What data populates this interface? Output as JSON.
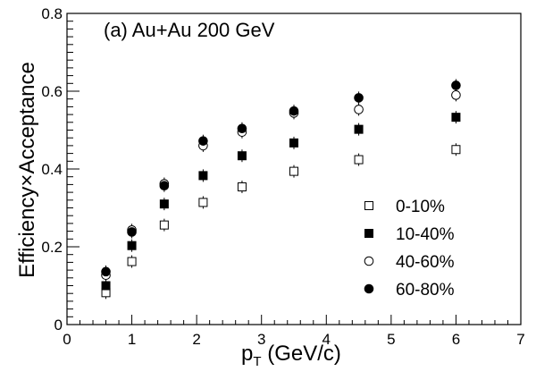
{
  "chart_data": {
    "type": "scatter",
    "title": "",
    "annotation": "(a) Au+Au 200 GeV",
    "xlabel": {
      "main": "p",
      "sub": "T",
      "rest": " (GeV/c)"
    },
    "ylabel": "Efficiency×Acceptance",
    "xlim": [
      0,
      7
    ],
    "ylim": [
      0,
      0.8
    ],
    "xticks": [
      0,
      1,
      2,
      3,
      4,
      5,
      6,
      7
    ],
    "xtick_labels": [
      "0",
      "1",
      "2",
      "3",
      "4",
      "5",
      "6",
      "7"
    ],
    "yticks": [
      0,
      0.2,
      0.4,
      0.6,
      0.8
    ],
    "ytick_labels": [
      "0",
      "0.2",
      "0.4",
      "0.6",
      "0.8"
    ],
    "grid": false,
    "legend_position": "bottom-right",
    "x": [
      0.6,
      1.0,
      1.5,
      2.1,
      2.7,
      3.5,
      4.5,
      6.0
    ],
    "series": [
      {
        "name": "0-10%",
        "marker": "open-square",
        "values": [
          0.082,
          0.162,
          0.256,
          0.314,
          0.354,
          0.394,
          0.424,
          0.45
        ]
      },
      {
        "name": "10-40%",
        "marker": "filled-square",
        "values": [
          0.1,
          0.203,
          0.31,
          0.383,
          0.434,
          0.467,
          0.502,
          0.533
        ]
      },
      {
        "name": "40-60%",
        "marker": "open-circle",
        "values": [
          0.127,
          0.243,
          0.362,
          0.46,
          0.495,
          0.544,
          0.553,
          0.59
        ]
      },
      {
        "name": "60-80%",
        "marker": "filled-circle",
        "values": [
          0.136,
          0.238,
          0.357,
          0.472,
          0.504,
          0.549,
          0.583,
          0.615
        ]
      }
    ]
  },
  "colors": {
    "marker": "#000000",
    "background": "#ffffff"
  }
}
